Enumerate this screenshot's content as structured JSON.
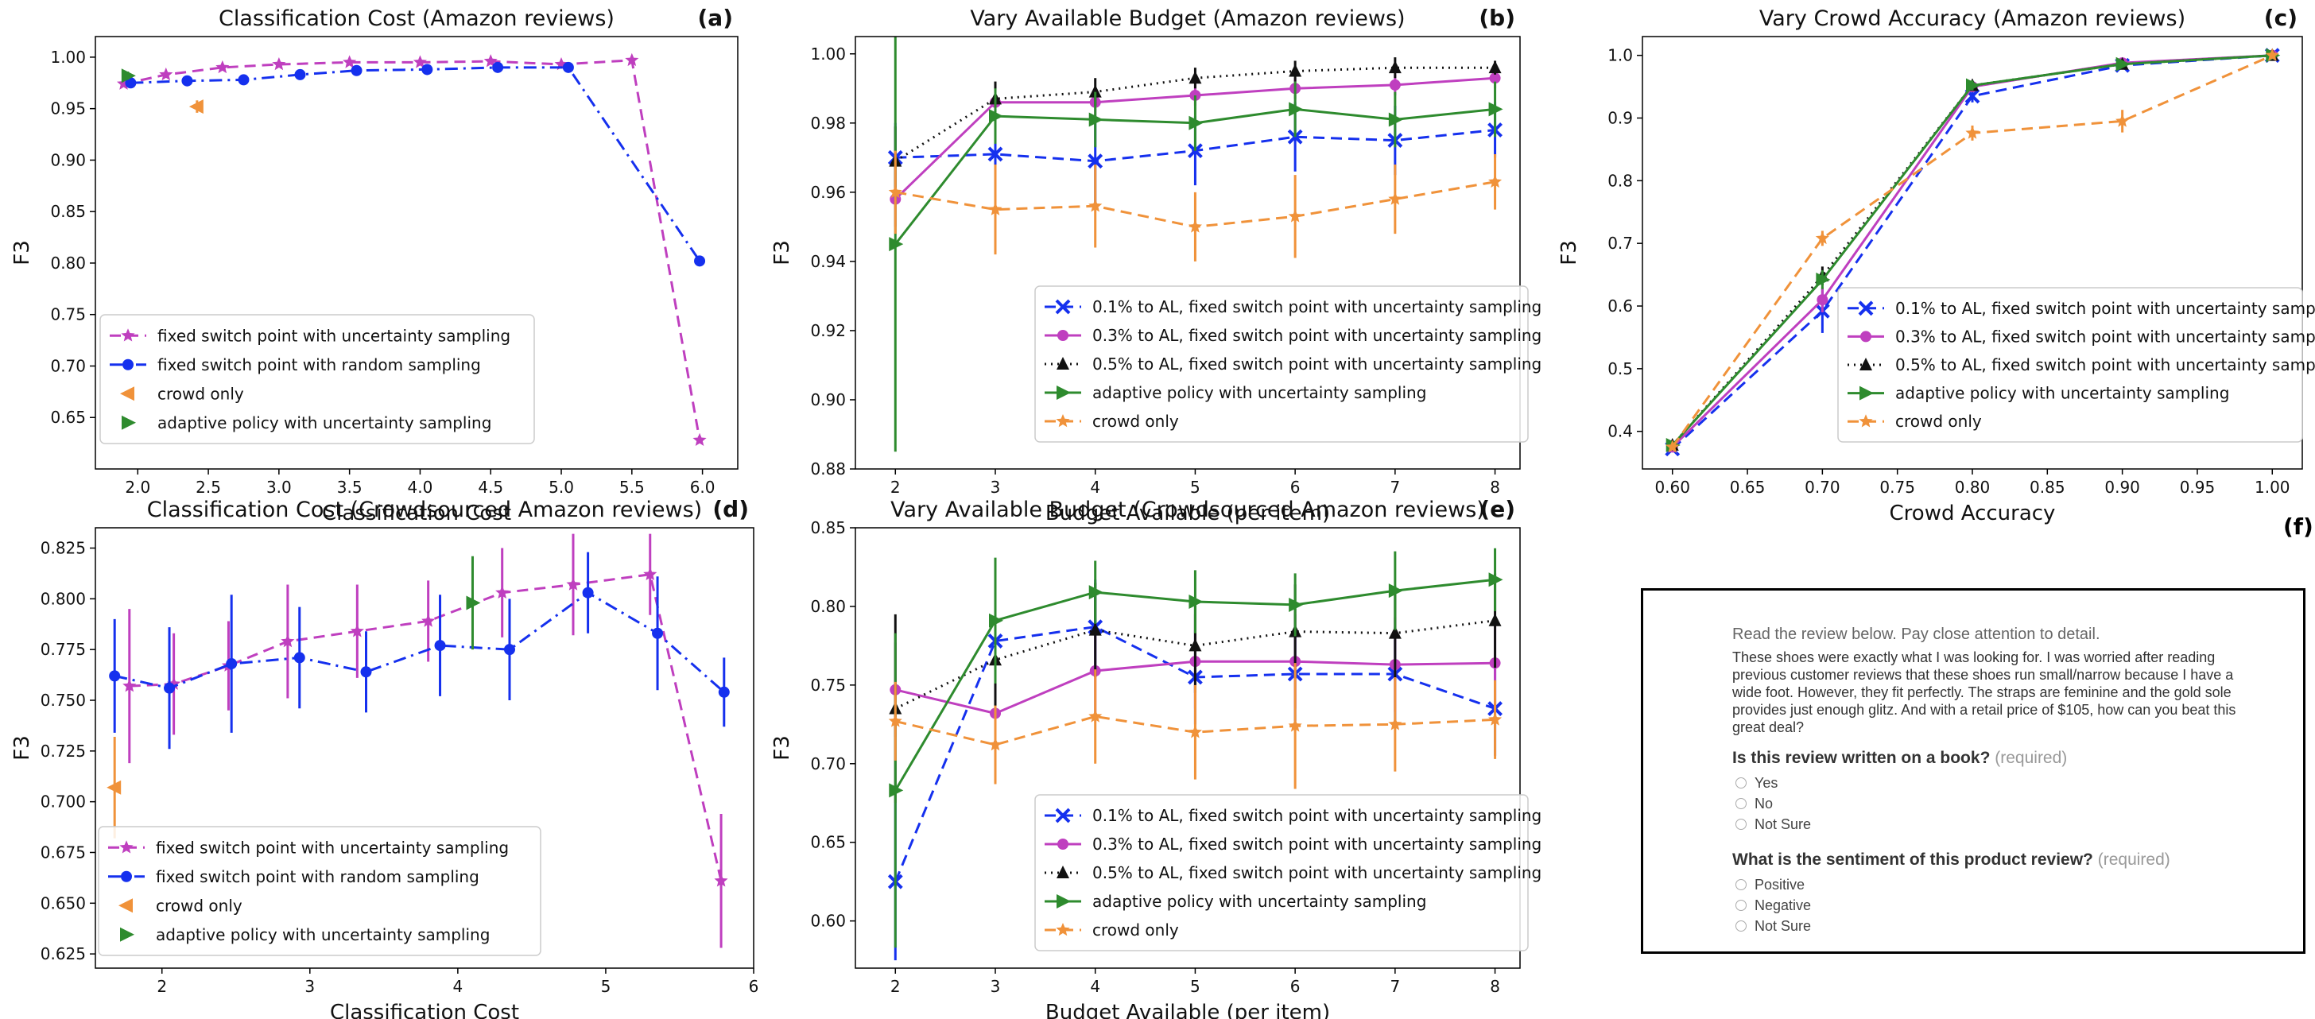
{
  "chart_data": [
    {
      "id": "a",
      "panel_label": "(a)",
      "type": "line",
      "title": "Classification Cost (Amazon reviews)",
      "xlabel": "Classification Cost",
      "ylabel": "F3",
      "xlim": [
        1.7,
        6.25
      ],
      "ylim": [
        0.6,
        1.02
      ],
      "xticks": [
        2.0,
        2.5,
        3.0,
        3.5,
        4.0,
        4.5,
        5.0,
        5.5,
        6.0
      ],
      "xtick_labels": [
        "2.0",
        "2.5",
        "3.0",
        "3.5",
        "4.0",
        "4.5",
        "5.0",
        "5.5",
        "6.0"
      ],
      "yticks": [
        0.65,
        0.7,
        0.75,
        0.8,
        0.85,
        0.9,
        0.95,
        1.0
      ],
      "ytick_labels": [
        "0.65",
        "0.70",
        "0.75",
        "0.80",
        "0.85",
        "0.90",
        "0.95",
        "1.00"
      ],
      "legend": "bottom-left",
      "series": [
        {
          "name": "fixed switch point with uncertainty sampling",
          "color": "#bf3fbf",
          "marker": "star",
          "dash": "dashed",
          "x": [
            1.9,
            2.2,
            2.6,
            3.0,
            3.5,
            4.0,
            4.5,
            5.0,
            5.5,
            5.98
          ],
          "y": [
            0.974,
            0.983,
            0.99,
            0.993,
            0.995,
            0.995,
            0.996,
            0.993,
            0.997,
            0.628
          ],
          "err": []
        },
        {
          "name": "fixed switch point with random sampling",
          "color": "#1530ee",
          "marker": "circle",
          "dash": "dashdot",
          "x": [
            1.95,
            2.35,
            2.75,
            3.15,
            3.55,
            4.05,
            4.55,
            5.05,
            5.98
          ],
          "y": [
            0.975,
            0.977,
            0.978,
            0.983,
            0.987,
            0.988,
            0.99,
            0.99,
            0.802
          ],
          "err": []
        },
        {
          "name": "crowd only",
          "color": "#f0923a",
          "marker": "triangle-left",
          "dash": "none",
          "x": [
            2.42
          ],
          "y": [
            0.952
          ],
          "err": [
            0.006
          ]
        },
        {
          "name": "adaptive policy with uncertainty sampling",
          "color": "#2e8b2e",
          "marker": "triangle-right",
          "dash": "none",
          "x": [
            1.93
          ],
          "y": [
            0.982
          ],
          "err": [
            0.004
          ]
        }
      ]
    },
    {
      "id": "b",
      "panel_label": "(b)",
      "type": "line",
      "title": "Vary Available Budget (Amazon reviews)",
      "xlabel": "Budget Available (per item)",
      "ylabel": "F3",
      "xlim": [
        1.6,
        8.25
      ],
      "ylim": [
        0.88,
        1.005
      ],
      "xticks": [
        2,
        3,
        4,
        5,
        6,
        7,
        8
      ],
      "xtick_labels": [
        "2",
        "3",
        "4",
        "5",
        "6",
        "7",
        "8"
      ],
      "yticks": [
        0.88,
        0.9,
        0.92,
        0.94,
        0.96,
        0.98,
        1.0
      ],
      "ytick_labels": [
        "0.88",
        "0.90",
        "0.92",
        "0.94",
        "0.96",
        "0.98",
        "1.00"
      ],
      "legend": "bottom-right",
      "series": [
        {
          "name": "0.1% to AL, fixed switch point with uncertainty sampling",
          "color": "#1530ee",
          "marker": "x",
          "dash": "dashed",
          "x": [
            2,
            3,
            4,
            5,
            6,
            7,
            8
          ],
          "y": [
            0.97,
            0.971,
            0.969,
            0.972,
            0.976,
            0.975,
            0.978
          ],
          "err": [
            0.01,
            0.01,
            0.012,
            0.01,
            0.01,
            0.01,
            0.008
          ]
        },
        {
          "name": "0.3% to AL, fixed switch point with uncertainty sampling",
          "color": "#bf3fbf",
          "marker": "circle",
          "dash": "solid",
          "x": [
            2,
            3,
            4,
            5,
            6,
            7,
            8
          ],
          "y": [
            0.958,
            0.986,
            0.986,
            0.988,
            0.99,
            0.991,
            0.993
          ],
          "err": [
            0.008,
            0.004,
            0.004,
            0.003,
            0.003,
            0.003,
            0.003
          ]
        },
        {
          "name": "0.5% to AL, fixed switch point with uncertainty sampling",
          "color": "#111111",
          "marker": "triangle-up",
          "dash": "dotted",
          "x": [
            2,
            3,
            4,
            5,
            6,
            7,
            8
          ],
          "y": [
            0.969,
            0.987,
            0.989,
            0.993,
            0.995,
            0.996,
            0.996
          ],
          "err": [
            0.01,
            0.005,
            0.004,
            0.003,
            0.003,
            0.003,
            0.002
          ]
        },
        {
          "name": "adaptive policy with uncertainty sampling",
          "color": "#2e8b2e",
          "marker": "triangle-right",
          "dash": "solid",
          "x": [
            2,
            3,
            4,
            5,
            6,
            7,
            8
          ],
          "y": [
            0.945,
            0.982,
            0.981,
            0.98,
            0.984,
            0.981,
            0.984
          ],
          "err": [
            0.06,
            0.008,
            0.008,
            0.008,
            0.008,
            0.008,
            0.008
          ]
        },
        {
          "name": "crowd only",
          "color": "#f0923a",
          "marker": "star",
          "dash": "dashed",
          "x": [
            2,
            3,
            4,
            5,
            6,
            7,
            8
          ],
          "y": [
            0.96,
            0.955,
            0.956,
            0.95,
            0.953,
            0.958,
            0.963
          ],
          "err": [
            0.012,
            0.013,
            0.012,
            0.01,
            0.012,
            0.01,
            0.008
          ]
        }
      ]
    },
    {
      "id": "c",
      "panel_label": "(c)",
      "type": "line",
      "title": "Vary Crowd Accuracy (Amazon reviews)",
      "xlabel": "Crowd Accuracy",
      "ylabel": "F3",
      "xlim": [
        0.58,
        1.02
      ],
      "ylim": [
        0.34,
        1.03
      ],
      "xticks": [
        0.6,
        0.65,
        0.7,
        0.75,
        0.8,
        0.85,
        0.9,
        0.95,
        1.0
      ],
      "xtick_labels": [
        "0.60",
        "0.65",
        "0.70",
        "0.75",
        "0.80",
        "0.85",
        "0.90",
        "0.95",
        "1.00"
      ],
      "yticks": [
        0.4,
        0.5,
        0.6,
        0.7,
        0.8,
        0.9,
        1.0
      ],
      "ytick_labels": [
        "0.4",
        "0.5",
        "0.6",
        "0.7",
        "0.8",
        "0.9",
        "1.0"
      ],
      "legend": "bottom-right",
      "series": [
        {
          "name": "0.1% to AL, fixed switch point with uncertainty samp",
          "color": "#1530ee",
          "marker": "x",
          "dash": "dashed",
          "x": [
            0.6,
            0.7,
            0.8,
            0.9,
            1.0
          ],
          "y": [
            0.372,
            0.592,
            0.935,
            0.984,
            1.0
          ],
          "err": [
            0.0,
            0.035,
            0.01,
            0.005,
            0.0
          ]
        },
        {
          "name": "0.3% to AL, fixed switch point with uncertainty samp",
          "color": "#bf3fbf",
          "marker": "circle",
          "dash": "solid",
          "x": [
            0.6,
            0.7,
            0.8,
            0.9,
            1.0
          ],
          "y": [
            0.375,
            0.61,
            0.95,
            0.988,
            1.0
          ],
          "err": [
            0.0,
            0.02,
            0.008,
            0.004,
            0.0
          ]
        },
        {
          "name": "0.5% to AL, fixed switch point with uncertainty samp",
          "color": "#111111",
          "marker": "triangle-up",
          "dash": "dotted",
          "x": [
            0.6,
            0.7,
            0.8,
            0.9,
            1.0
          ],
          "y": [
            0.378,
            0.648,
            0.952,
            0.986,
            1.0
          ],
          "err": [
            0.0,
            0.015,
            0.008,
            0.004,
            0.0
          ]
        },
        {
          "name": "adaptive policy with uncertainty sampling",
          "color": "#2e8b2e",
          "marker": "triangle-right",
          "dash": "solid",
          "x": [
            0.6,
            0.7,
            0.8,
            0.9,
            1.0
          ],
          "y": [
            0.378,
            0.642,
            0.952,
            0.986,
            1.0
          ],
          "err": [
            0.0,
            0.015,
            0.008,
            0.004,
            0.0
          ]
        },
        {
          "name": "crowd only",
          "color": "#f0923a",
          "marker": "star",
          "dash": "dashed",
          "x": [
            0.6,
            0.7,
            0.8,
            0.9,
            1.0
          ],
          "y": [
            0.375,
            0.708,
            0.876,
            0.895,
            1.0
          ],
          "err": [
            0.0,
            0.012,
            0.012,
            0.018,
            0.0
          ]
        }
      ]
    },
    {
      "id": "d",
      "panel_label": "(d)",
      "type": "line",
      "title": "Classification Cost (Crowdsourced Amazon reviews)",
      "xlabel": "Classification Cost",
      "ylabel": "F3",
      "xlim": [
        1.55,
        6.0
      ],
      "ylim": [
        0.618,
        0.835
      ],
      "xticks": [
        2,
        3,
        4,
        5,
        6
      ],
      "xtick_labels": [
        "2",
        "3",
        "4",
        "5",
        "6"
      ],
      "yticks": [
        0.625,
        0.65,
        0.675,
        0.7,
        0.725,
        0.75,
        0.775,
        0.8,
        0.825
      ],
      "ytick_labels": [
        "0.625",
        "0.650",
        "0.675",
        "0.700",
        "0.725",
        "0.750",
        "0.775",
        "0.800",
        "0.825"
      ],
      "legend": "bottom-left",
      "series": [
        {
          "name": "fixed switch point with uncertainty sampling",
          "color": "#bf3fbf",
          "marker": "star",
          "dash": "dashed",
          "x": [
            1.78,
            2.08,
            2.45,
            2.85,
            3.32,
            3.8,
            4.3,
            4.78,
            5.3,
            5.78
          ],
          "y": [
            0.757,
            0.758,
            0.767,
            0.779,
            0.784,
            0.789,
            0.803,
            0.807,
            0.812,
            0.661
          ],
          "err": [
            0.038,
            0.025,
            0.022,
            0.028,
            0.023,
            0.02,
            0.022,
            0.025,
            0.02,
            0.033
          ]
        },
        {
          "name": "fixed switch point with random sampling",
          "color": "#1530ee",
          "marker": "circle",
          "dash": "dashdot",
          "x": [
            1.68,
            2.05,
            2.47,
            2.93,
            3.38,
            3.88,
            4.35,
            4.88,
            5.35,
            5.8
          ],
          "y": [
            0.762,
            0.756,
            0.768,
            0.771,
            0.764,
            0.777,
            0.775,
            0.803,
            0.783,
            0.754
          ],
          "err": [
            0.028,
            0.03,
            0.034,
            0.025,
            0.02,
            0.025,
            0.025,
            0.02,
            0.028,
            0.017
          ]
        },
        {
          "name": "crowd only",
          "color": "#f0923a",
          "marker": "triangle-left",
          "dash": "none",
          "x": [
            1.68
          ],
          "y": [
            0.707
          ],
          "err": [
            0.025
          ]
        },
        {
          "name": "adaptive policy with uncertainty sampling",
          "color": "#2e8b2e",
          "marker": "triangle-right",
          "dash": "none",
          "x": [
            4.1
          ],
          "y": [
            0.798
          ],
          "err": [
            0.023
          ]
        }
      ]
    },
    {
      "id": "e",
      "panel_label": "(e)",
      "type": "line",
      "title": "Vary Available Budget (Crowdsourced Amazon reviews)",
      "xlabel": "Budget Available (per item)",
      "ylabel": "F3",
      "xlim": [
        1.6,
        8.25
      ],
      "ylim": [
        0.57,
        0.85
      ],
      "xticks": [
        2,
        3,
        4,
        5,
        6,
        7,
        8
      ],
      "xtick_labels": [
        "2",
        "3",
        "4",
        "5",
        "6",
        "7",
        "8"
      ],
      "yticks": [
        0.6,
        0.65,
        0.7,
        0.75,
        0.8,
        0.85
      ],
      "ytick_labels": [
        "0.60",
        "0.65",
        "0.70",
        "0.75",
        "0.80",
        "0.85"
      ],
      "legend": "bottom-right",
      "series": [
        {
          "name": "0.1% to AL, fixed switch point with uncertainty sampling",
          "color": "#1530ee",
          "marker": "x",
          "dash": "dashed",
          "x": [
            2,
            3,
            4,
            5,
            6,
            7,
            8
          ],
          "y": [
            0.625,
            0.778,
            0.787,
            0.755,
            0.757,
            0.757,
            0.735
          ],
          "err": [
            0.05,
            0.035,
            0.03,
            0.03,
            0.03,
            0.03,
            0.03
          ]
        },
        {
          "name": "0.3% to AL, fixed switch point with uncertainty sampling",
          "color": "#bf3fbf",
          "marker": "circle",
          "dash": "solid",
          "x": [
            2,
            3,
            4,
            5,
            6,
            7,
            8
          ],
          "y": [
            0.747,
            0.732,
            0.759,
            0.765,
            0.765,
            0.763,
            0.764
          ],
          "err": [
            0.03,
            0.03,
            0.03,
            0.03,
            0.03,
            0.03,
            0.03
          ]
        },
        {
          "name": "0.5% to AL, fixed switch point with uncertainty sampling",
          "color": "#111111",
          "marker": "triangle-up",
          "dash": "dotted",
          "x": [
            2,
            3,
            4,
            5,
            6,
            7,
            8
          ],
          "y": [
            0.735,
            0.766,
            0.785,
            0.775,
            0.784,
            0.783,
            0.791
          ],
          "err": [
            0.06,
            0.03,
            0.03,
            0.03,
            0.03,
            0.03,
            0.03
          ]
        },
        {
          "name": "adaptive policy with uncertainty sampling",
          "color": "#2e8b2e",
          "marker": "triangle-right",
          "dash": "solid",
          "x": [
            2,
            3,
            4,
            5,
            6,
            7,
            8
          ],
          "y": [
            0.683,
            0.791,
            0.809,
            0.803,
            0.801,
            0.81,
            0.817
          ],
          "err": [
            0.1,
            0.04,
            0.02,
            0.02,
            0.02,
            0.025,
            0.02
          ]
        },
        {
          "name": "crowd only",
          "color": "#f0923a",
          "marker": "star",
          "dash": "dashed",
          "x": [
            2,
            3,
            4,
            5,
            6,
            7,
            8
          ],
          "y": [
            0.727,
            0.712,
            0.73,
            0.72,
            0.724,
            0.725,
            0.728
          ],
          "err": [
            0.025,
            0.025,
            0.03,
            0.03,
            0.04,
            0.03,
            0.025
          ]
        }
      ]
    }
  ],
  "panel_f": {
    "label": "(f)",
    "instruction": "Read the review below. Pay close attention to detail.",
    "review_text": "These shoes were exactly what I was looking for. I was worried after reading previous customer reviews that these shoes run small/narrow because I have a wide foot. However, they fit perfectly. The straps are feminine and the gold sole provides just enough glitz. And with a retail price of $105, how can you beat this great deal?",
    "required_label": "(required)",
    "q1": {
      "question": "Is this review written on a book?",
      "options": [
        "Yes",
        "No",
        "Not Sure"
      ]
    },
    "q2": {
      "question": "What is the sentiment of this product review?",
      "options": [
        "Positive",
        "Negative",
        "Not Sure"
      ]
    }
  }
}
